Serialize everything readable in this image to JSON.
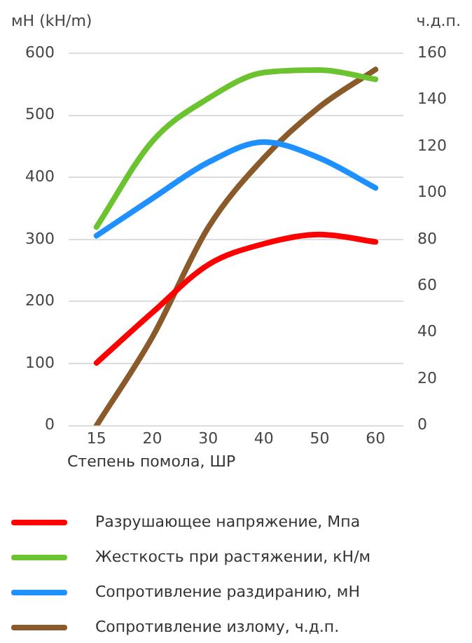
{
  "chart_data": {
    "type": "line",
    "xlabel": "Степень помола, ШР",
    "ylabel": "мН (kH/m)",
    "y2label": "ч.д.п.",
    "categories": [
      "15",
      "20",
      "30",
      "40",
      "50",
      "60"
    ],
    "ylim": [
      0,
      600
    ],
    "yticks": [
      0,
      100,
      200,
      300,
      400,
      500,
      600
    ],
    "y2lim": [
      0,
      160
    ],
    "y2ticks": [
      0,
      20,
      40,
      60,
      80,
      100,
      120,
      140,
      160
    ],
    "grid": "y",
    "legend": "bottom",
    "marker": "none",
    "line_style": "solid",
    "series": [
      {
        "name": "Разрушающее напряжение, Мпа",
        "color": "#ff0000",
        "values": [
          101,
          182,
          259,
          293,
          308,
          296
        ]
      },
      {
        "name": "Жесткость при растяжении, кН/м",
        "color": "#6cc330",
        "values": [
          320,
          458,
          527,
          569,
          573,
          558
        ]
      },
      {
        "name": "Сопротивление раздиранию, мН",
        "color": "#1e90ff",
        "values": [
          306,
          366,
          424,
          457,
          431,
          383
        ]
      },
      {
        "name": "Сопротивление излому, ч.д.п.",
        "color": "#8b5a2b",
        "axis": "y2",
        "values": [
          0,
          38,
          85,
          115,
          137,
          153
        ]
      }
    ]
  }
}
